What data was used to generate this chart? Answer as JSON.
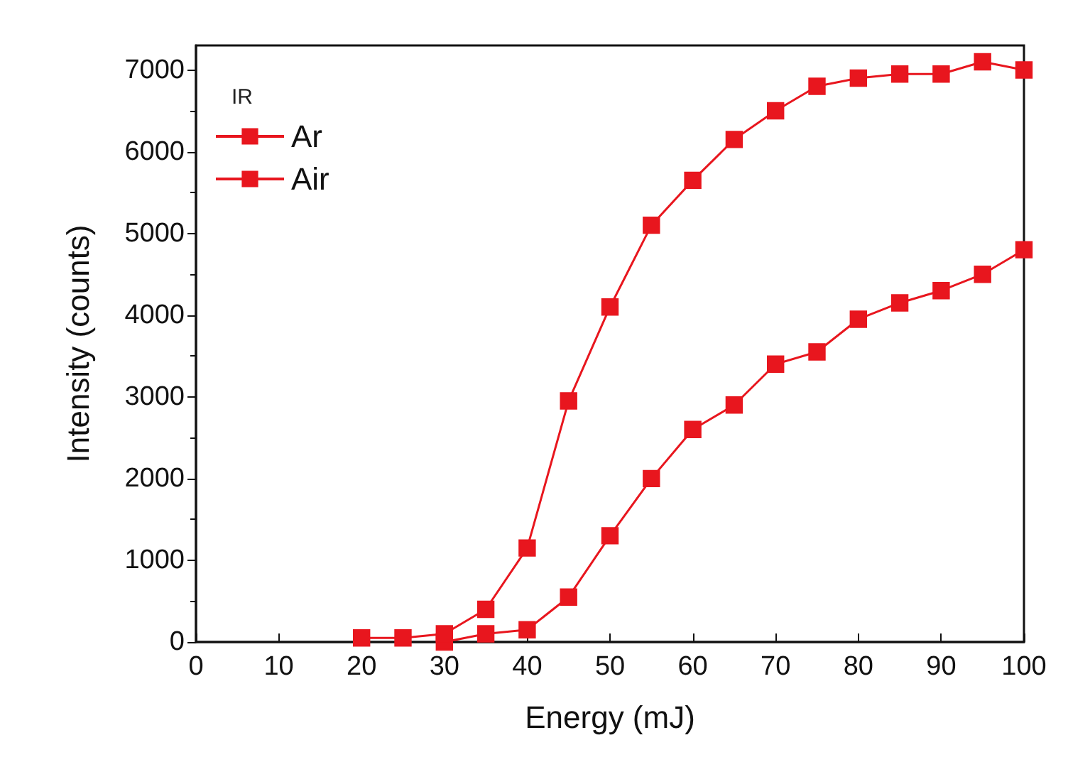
{
  "chart_data": {
    "type": "line",
    "xlabel": "Energy (mJ)",
    "ylabel": "Intensity (counts)",
    "legend_title": "IR",
    "legend": "top left",
    "marker": "square",
    "grid": false,
    "xlim": [
      0,
      100
    ],
    "xticks": [
      0,
      10,
      20,
      30,
      40,
      50,
      60,
      70,
      80,
      90,
      100
    ],
    "ylim": [
      0,
      7300
    ],
    "yticks": [
      0,
      1000,
      2000,
      3000,
      4000,
      5000,
      6000,
      7000
    ],
    "series": [
      {
        "name": "Ar",
        "color": "#e8161e",
        "x": [
          20,
          25,
          30,
          35,
          40,
          45,
          50,
          55,
          60,
          65,
          70,
          75,
          80,
          85,
          90,
          95,
          100
        ],
        "values": [
          50,
          50,
          100,
          400,
          1150,
          2950,
          4100,
          5100,
          5650,
          6150,
          6500,
          6800,
          6900,
          6950,
          6950,
          7100,
          7000
        ]
      },
      {
        "name": "Air",
        "color": "#e8161e",
        "x": [
          30,
          35,
          40,
          45,
          50,
          55,
          60,
          65,
          70,
          75,
          80,
          85,
          90,
          95,
          100
        ],
        "values": [
          0,
          100,
          150,
          550,
          1300,
          2000,
          2600,
          2900,
          3400,
          3550,
          3950,
          4150,
          4300,
          4500,
          4800
        ]
      }
    ]
  }
}
